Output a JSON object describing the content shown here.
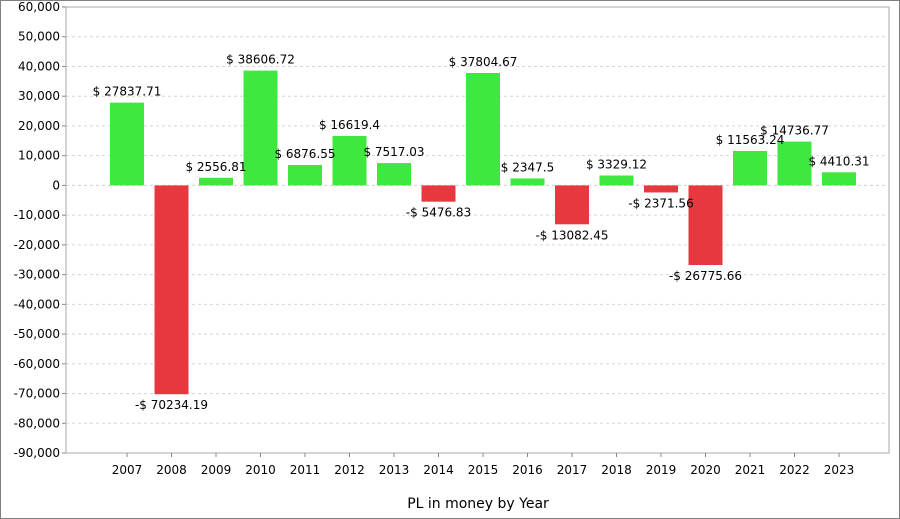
{
  "chart_data": {
    "type": "bar",
    "title": "",
    "xlabel": "PL in money by Year",
    "ylabel": "",
    "ylim": [
      -90000,
      60000
    ],
    "y_ticks": [
      {
        "value": 60000,
        "label": "60,000"
      },
      {
        "value": 50000,
        "label": "50,000"
      },
      {
        "value": 40000,
        "label": "40,000"
      },
      {
        "value": 30000,
        "label": "30,000"
      },
      {
        "value": 20000,
        "label": "20,000"
      },
      {
        "value": 10000,
        "label": "10,000"
      },
      {
        "value": 0,
        "label": "0"
      },
      {
        "value": -10000,
        "label": "-10,000"
      },
      {
        "value": -20000,
        "label": "-20,000"
      },
      {
        "value": -30000,
        "label": "-30,000"
      },
      {
        "value": -40000,
        "label": "-40,000"
      },
      {
        "value": -50000,
        "label": "-50,000"
      },
      {
        "value": -60000,
        "label": "-60,000"
      },
      {
        "value": -70000,
        "label": "-70,000"
      },
      {
        "value": -80000,
        "label": "-80,000"
      },
      {
        "value": -90000,
        "label": "-90,000"
      }
    ],
    "grid": true,
    "legend": "none",
    "colors": {
      "positive": "#3ee83e",
      "negative": "#e8383f"
    },
    "categories": [
      "2007",
      "2008",
      "2009",
      "2010",
      "2011",
      "2012",
      "2013",
      "2014",
      "2015",
      "2016",
      "2017",
      "2018",
      "2019",
      "2020",
      "2021",
      "2022",
      "2023"
    ],
    "values": [
      27837.71,
      -70234.19,
      2556.81,
      38606.72,
      6876.55,
      16619.4,
      7517.03,
      -5476.83,
      37804.67,
      2347.5,
      -13082.45,
      3329.12,
      -2371.56,
      -26775.66,
      11563.24,
      14736.77,
      4410.31
    ],
    "data_labels": [
      "$ 27837.71",
      "-$ 70234.19",
      "$ 2556.81",
      "$ 38606.72",
      "$ 6876.55",
      "$ 16619.4",
      "$ 7517.03",
      "-$ 5476.83",
      "$ 37804.67",
      "$ 2347.5",
      "-$ 13082.45",
      "$ 3329.12",
      "-$ 2371.56",
      "-$ 26775.66",
      "$ 11563.24",
      "$ 14736.77",
      "$ 4410.31"
    ]
  }
}
